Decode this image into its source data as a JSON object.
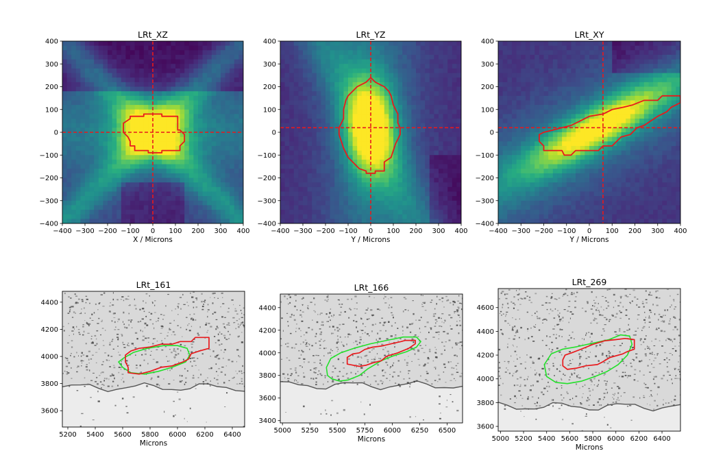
{
  "figure": {
    "colors": {
      "contour": "#e8191c",
      "crosshair": "#e8191c",
      "contour_secondary": "#22e02a",
      "viridis_low": "#440154",
      "viridis_mid": "#21918c",
      "viridis_high": "#fde725"
    }
  },
  "chart_data": [
    {
      "type": "heatmap",
      "title": "LRt_XZ",
      "xlabel": "X / Microns",
      "ylabel": "",
      "xlim": [
        -400,
        400
      ],
      "ylim": [
        400,
        -400
      ],
      "xticks": [
        -400,
        -300,
        -200,
        -100,
        0,
        100,
        200,
        300,
        400
      ],
      "yticks": [
        -400,
        -300,
        -200,
        -100,
        0,
        100,
        200,
        300,
        400
      ],
      "colormap": "viridis",
      "crosshair": {
        "x": 0,
        "y": 0
      },
      "contour": [
        [
          -80,
          -80
        ],
        [
          -20,
          -80
        ],
        [
          -20,
          -90
        ],
        [
          40,
          -90
        ],
        [
          40,
          -80
        ],
        [
          120,
          -80
        ],
        [
          120,
          -60
        ],
        [
          140,
          -40
        ],
        [
          140,
          -10
        ],
        [
          120,
          10
        ],
        [
          110,
          10
        ],
        [
          110,
          70
        ],
        [
          40,
          70
        ],
        [
          40,
          80
        ],
        [
          -40,
          80
        ],
        [
          -40,
          70
        ],
        [
          -100,
          70
        ],
        [
          -100,
          60
        ],
        [
          -130,
          40
        ],
        [
          -130,
          0
        ],
        [
          -110,
          -20
        ],
        [
          -100,
          -40
        ],
        [
          -100,
          -60
        ],
        [
          -80,
          -60
        ]
      ]
    },
    {
      "type": "heatmap",
      "title": "LRt_YZ",
      "xlabel": "Y / Microns",
      "ylabel": "",
      "xlim": [
        -400,
        400
      ],
      "ylim": [
        400,
        -400
      ],
      "xticks": [
        -400,
        -300,
        -200,
        -100,
        0,
        100,
        200,
        300,
        400
      ],
      "yticks": [
        -400,
        -300,
        -200,
        -100,
        0,
        100,
        200,
        300,
        400
      ],
      "colormap": "viridis",
      "crosshair": {
        "x": 0,
        "y": 20
      },
      "contour": [
        [
          -20,
          -180
        ],
        [
          20,
          -180
        ],
        [
          20,
          -170
        ],
        [
          60,
          -170
        ],
        [
          60,
          -130
        ],
        [
          90,
          -110
        ],
        [
          100,
          -80
        ],
        [
          110,
          -50
        ],
        [
          120,
          -30
        ],
        [
          130,
          -10
        ],
        [
          130,
          20
        ],
        [
          120,
          40
        ],
        [
          120,
          80
        ],
        [
          100,
          120
        ],
        [
          90,
          160
        ],
        [
          80,
          180
        ],
        [
          60,
          200
        ],
        [
          40,
          210
        ],
        [
          20,
          220
        ],
        [
          0,
          240
        ],
        [
          -20,
          220
        ],
        [
          -60,
          200
        ],
        [
          -100,
          160
        ],
        [
          -110,
          140
        ],
        [
          -120,
          100
        ],
        [
          -120,
          60
        ],
        [
          -130,
          40
        ],
        [
          -140,
          20
        ],
        [
          -140,
          -10
        ],
        [
          -130,
          -40
        ],
        [
          -120,
          -70
        ],
        [
          -100,
          -110
        ],
        [
          -70,
          -140
        ],
        [
          -50,
          -160
        ],
        [
          -20,
          -170
        ]
      ]
    },
    {
      "type": "heatmap",
      "title": "LRt_XY",
      "xlabel": "Y / Microns",
      "ylabel": "",
      "xlim": [
        -400,
        400
      ],
      "ylim": [
        400,
        -400
      ],
      "xticks": [
        -400,
        -300,
        -200,
        -100,
        0,
        100,
        200,
        300,
        400
      ],
      "yticks": [
        -400,
        -300,
        -200,
        -100,
        0,
        100,
        200,
        300,
        400
      ],
      "colormap": "viridis",
      "crosshair": {
        "x": 60,
        "y": 20
      },
      "contour": [
        [
          -200,
          -80
        ],
        [
          -120,
          -80
        ],
        [
          -110,
          -100
        ],
        [
          -80,
          -100
        ],
        [
          -60,
          -80
        ],
        [
          40,
          -80
        ],
        [
          60,
          -60
        ],
        [
          100,
          -60
        ],
        [
          140,
          -20
        ],
        [
          180,
          -10
        ],
        [
          210,
          20
        ],
        [
          240,
          30
        ],
        [
          270,
          50
        ],
        [
          300,
          70
        ],
        [
          340,
          90
        ],
        [
          360,
          110
        ],
        [
          400,
          130
        ],
        [
          400,
          160
        ],
        [
          320,
          160
        ],
        [
          300,
          140
        ],
        [
          240,
          140
        ],
        [
          190,
          120
        ],
        [
          150,
          110
        ],
        [
          100,
          100
        ],
        [
          60,
          80
        ],
        [
          0,
          70
        ],
        [
          -40,
          50
        ],
        [
          -80,
          30
        ],
        [
          -120,
          20
        ],
        [
          -160,
          10
        ],
        [
          -200,
          0
        ],
        [
          -220,
          -10
        ],
        [
          -220,
          -40
        ],
        [
          -200,
          -60
        ]
      ]
    },
    {
      "type": "scatter",
      "title": "LRt_161",
      "xlabel": "Microns",
      "ylabel": "",
      "xlim": [
        5160,
        6490
      ],
      "ylim": [
        4480,
        3480
      ],
      "xticks": [
        5200,
        5400,
        5600,
        5800,
        6000,
        6200,
        6400
      ],
      "yticks": [
        3600,
        3800,
        4000,
        4200,
        4400
      ],
      "background": "histology section",
      "outline_red": [
        [
          5640,
          3880
        ],
        [
          5720,
          3870
        ],
        [
          5800,
          3890
        ],
        [
          5880,
          3920
        ],
        [
          5960,
          3930
        ],
        [
          6040,
          3960
        ],
        [
          6080,
          3980
        ],
        [
          6100,
          4020
        ],
        [
          6160,
          4040
        ],
        [
          6230,
          4060
        ],
        [
          6230,
          4140
        ],
        [
          6130,
          4140
        ],
        [
          6100,
          4110
        ],
        [
          6020,
          4110
        ],
        [
          5960,
          4090
        ],
        [
          5880,
          4090
        ],
        [
          5800,
          4070
        ],
        [
          5720,
          4060
        ],
        [
          5660,
          4040
        ],
        [
          5620,
          4010
        ],
        [
          5620,
          3960
        ],
        [
          5640,
          3920
        ]
      ],
      "outline_green": [
        [
          5600,
          3920
        ],
        [
          5660,
          3880
        ],
        [
          5760,
          3870
        ],
        [
          5860,
          3890
        ],
        [
          5960,
          3920
        ],
        [
          6060,
          3960
        ],
        [
          6090,
          4010
        ],
        [
          6070,
          4060
        ],
        [
          6000,
          4080
        ],
        [
          5900,
          4080
        ],
        [
          5780,
          4060
        ],
        [
          5680,
          4030
        ],
        [
          5610,
          3990
        ],
        [
          5570,
          3960
        ]
      ]
    },
    {
      "type": "scatter",
      "title": "LRt_166",
      "xlabel": "Microns",
      "ylabel": "",
      "xlim": [
        4980,
        6640
      ],
      "ylim": [
        4520,
        3380
      ],
      "xticks": [
        5000,
        5250,
        5500,
        5750,
        6000,
        6250,
        6500
      ],
      "yticks": [
        3400,
        3600,
        3800,
        4000,
        4200,
        4400
      ],
      "background": "histology section",
      "outline_red": [
        [
          5590,
          3900
        ],
        [
          5700,
          3880
        ],
        [
          5760,
          3890
        ],
        [
          5820,
          3910
        ],
        [
          5900,
          3930
        ],
        [
          5950,
          3970
        ],
        [
          6050,
          4000
        ],
        [
          6150,
          4040
        ],
        [
          6210,
          4080
        ],
        [
          6210,
          4110
        ],
        [
          6120,
          4110
        ],
        [
          6080,
          4100
        ],
        [
          5990,
          4080
        ],
        [
          5900,
          4060
        ],
        [
          5820,
          4050
        ],
        [
          5750,
          4030
        ],
        [
          5700,
          4000
        ],
        [
          5640,
          3990
        ],
        [
          5590,
          3960
        ]
      ],
      "outline_green": [
        [
          5450,
          3770
        ],
        [
          5520,
          3750
        ],
        [
          5600,
          3760
        ],
        [
          5700,
          3800
        ],
        [
          5780,
          3860
        ],
        [
          5900,
          3930
        ],
        [
          6000,
          3970
        ],
        [
          6130,
          4010
        ],
        [
          6220,
          4050
        ],
        [
          6260,
          4100
        ],
        [
          6220,
          4140
        ],
        [
          6100,
          4140
        ],
        [
          5950,
          4110
        ],
        [
          5800,
          4080
        ],
        [
          5650,
          4040
        ],
        [
          5530,
          4000
        ],
        [
          5440,
          3950
        ],
        [
          5400,
          3870
        ],
        [
          5410,
          3800
        ]
      ]
    },
    {
      "type": "scatter",
      "title": "LRt_269",
      "xlabel": "Microns",
      "ylabel": "",
      "xlim": [
        4980,
        6560
      ],
      "ylim": [
        4760,
        3560
      ],
      "xticks": [
        5000,
        5200,
        5400,
        5600,
        5800,
        6000,
        6200,
        6400
      ],
      "yticks": [
        3600,
        3800,
        4000,
        4200,
        4400,
        4600
      ],
      "background": "histology section",
      "outline_red": [
        [
          5540,
          4110
        ],
        [
          5580,
          4080
        ],
        [
          5660,
          4090
        ],
        [
          5740,
          4110
        ],
        [
          5840,
          4120
        ],
        [
          5880,
          4140
        ],
        [
          5950,
          4180
        ],
        [
          6060,
          4210
        ],
        [
          6100,
          4230
        ],
        [
          6160,
          4250
        ],
        [
          6160,
          4330
        ],
        [
          6080,
          4340
        ],
        [
          6000,
          4330
        ],
        [
          5900,
          4320
        ],
        [
          5800,
          4290
        ],
        [
          5700,
          4250
        ],
        [
          5620,
          4220
        ],
        [
          5560,
          4200
        ],
        [
          5540,
          4160
        ]
      ],
      "outline_green": [
        [
          5400,
          4020
        ],
        [
          5480,
          3970
        ],
        [
          5580,
          3960
        ],
        [
          5700,
          3980
        ],
        [
          5820,
          4020
        ],
        [
          5920,
          4060
        ],
        [
          6020,
          4120
        ],
        [
          6100,
          4200
        ],
        [
          6140,
          4290
        ],
        [
          6120,
          4360
        ],
        [
          6040,
          4370
        ],
        [
          5940,
          4330
        ],
        [
          5800,
          4300
        ],
        [
          5660,
          4270
        ],
        [
          5540,
          4250
        ],
        [
          5440,
          4210
        ],
        [
          5380,
          4120
        ]
      ]
    }
  ]
}
